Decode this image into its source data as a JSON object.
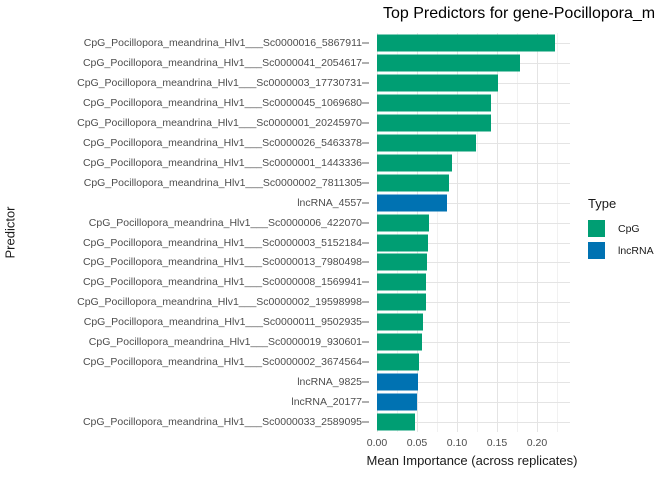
{
  "chart_data": {
    "type": "bar",
    "orientation": "horizontal",
    "title": "Top Predictors for gene-Pocillopora_m",
    "xlabel": "Mean Importance (across replicates)",
    "ylabel": "Predictor",
    "xlim": [
      0,
      0.241
    ],
    "xticks": [
      0,
      0.05,
      0.1,
      0.15,
      0.2
    ],
    "xtick_labels": [
      "0.00",
      "0.05",
      "0.10",
      "0.15",
      "0.20"
    ],
    "x_minor_ticks": [
      0.025,
      0.075,
      0.125,
      0.175,
      0.225
    ],
    "grid": "on",
    "legend": {
      "title": "Type",
      "position": "right",
      "entries": [
        {
          "label": "CpG",
          "color": "#009E73"
        },
        {
          "label": "lncRNA",
          "color": "#0072B2"
        }
      ]
    },
    "series_colors": {
      "CpG": "#009E73",
      "lncRNA": "#0072B2"
    },
    "bars": [
      {
        "label": "CpG_Pocillopora_meandrina_Hlv1___Sc0000016_5867911",
        "type": "CpG",
        "value": 0.222
      },
      {
        "label": "CpG_Pocillopora_meandrina_Hlv1___Sc0000041_2054617",
        "type": "CpG",
        "value": 0.179
      },
      {
        "label": "CpG_Pocillopora_meandrina_Hlv1___Sc0000003_17730731",
        "type": "CpG",
        "value": 0.151
      },
      {
        "label": "CpG_Pocillopora_meandrina_Hlv1___Sc0000045_1069680",
        "type": "CpG",
        "value": 0.142
      },
      {
        "label": "CpG_Pocillopora_meandrina_Hlv1___Sc0000001_20245970",
        "type": "CpG",
        "value": 0.142
      },
      {
        "label": "CpG_Pocillopora_meandrina_Hlv1___Sc0000026_5463378",
        "type": "CpG",
        "value": 0.124
      },
      {
        "label": "CpG_Pocillopora_meandrina_Hlv1___Sc0000001_1443336",
        "type": "CpG",
        "value": 0.094
      },
      {
        "label": "CpG_Pocillopora_meandrina_Hlv1___Sc0000002_7811305",
        "type": "CpG",
        "value": 0.09
      },
      {
        "label": "lncRNA_4557",
        "type": "lncRNA",
        "value": 0.088
      },
      {
        "label": "CpG_Pocillopora_meandrina_Hlv1___Sc0000006_422070",
        "type": "CpG",
        "value": 0.065
      },
      {
        "label": "CpG_Pocillopora_meandrina_Hlv1___Sc0000003_5152184",
        "type": "CpG",
        "value": 0.064
      },
      {
        "label": "CpG_Pocillopora_meandrina_Hlv1___Sc0000013_7980498",
        "type": "CpG",
        "value": 0.063
      },
      {
        "label": "CpG_Pocillopora_meandrina_Hlv1___Sc0000008_1569941",
        "type": "CpG",
        "value": 0.061
      },
      {
        "label": "CpG_Pocillopora_meandrina_Hlv1___Sc0000002_19598998",
        "type": "CpG",
        "value": 0.061
      },
      {
        "label": "CpG_Pocillopora_meandrina_Hlv1___Sc0000011_9502935",
        "type": "CpG",
        "value": 0.057
      },
      {
        "label": "CpG_Pocillopora_meandrina_Hlv1___Sc0000019_930601",
        "type": "CpG",
        "value": 0.056
      },
      {
        "label": "CpG_Pocillopora_meandrina_Hlv1___Sc0000002_3674564",
        "type": "CpG",
        "value": 0.052
      },
      {
        "label": "lncRNA_9825",
        "type": "lncRNA",
        "value": 0.051
      },
      {
        "label": "lncRNA_20177",
        "type": "lncRNA",
        "value": 0.05
      },
      {
        "label": "CpG_Pocillopora_meandrina_Hlv1___Sc0000033_2589095",
        "type": "CpG",
        "value": 0.048
      }
    ]
  },
  "colors": {
    "background": "#ffffff",
    "grid_major": "#e4e4e4",
    "grid_minor": "#f1f1f1",
    "axis_tick": "#b0b0b0",
    "tick_label_text": "#4d4d4d",
    "title_text": "#000000"
  }
}
